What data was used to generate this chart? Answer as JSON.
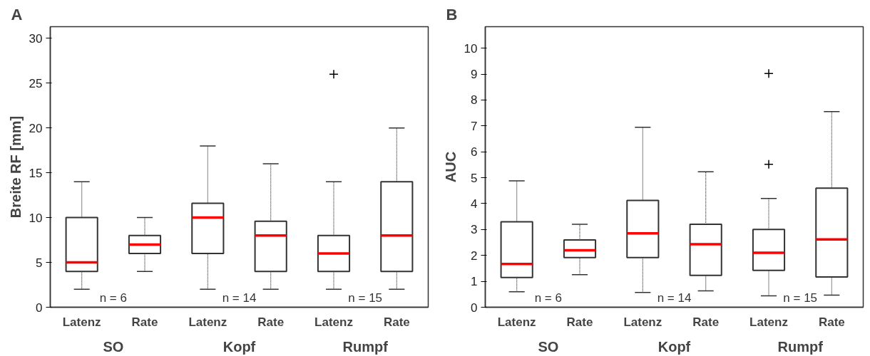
{
  "chart_data": [
    {
      "type": "box",
      "title": "A",
      "ylabel": "Breite RF [mm]",
      "categories": [
        "Latenz",
        "Rate",
        "Latenz",
        "Rate",
        "Latenz",
        "Rate"
      ],
      "series": [
        {
          "color": "#333333",
          "boxes": [
            {
              "low": 2,
              "q1": 4,
              "median": 5,
              "q3": 10,
              "high": 14
            },
            {
              "low": 4,
              "q1": 6,
              "median": 7,
              "q3": 8,
              "high": 10
            },
            {
              "low": 2,
              "q1": 6,
              "median": 10,
              "q3": 11.6,
              "high": 18
            },
            {
              "low": 2,
              "q1": 4,
              "median": 8,
              "q3": 9.6,
              "high": 16
            },
            {
              "low": 2,
              "q1": 4,
              "median": 6,
              "q3": 8,
              "high": 14,
              "outliers": [
                26
              ]
            },
            {
              "low": 2,
              "q1": 4,
              "median": 8,
              "q3": 14,
              "high": 20
            }
          ]
        }
      ],
      "ylim": [
        0,
        31.3
      ],
      "yticks": [
        0,
        5,
        10,
        15,
        20,
        25,
        30
      ],
      "grid": false,
      "marker": "cross",
      "annotations": [
        "SO",
        "Kopf",
        "Rumpf",
        "n = 6",
        "n = 14",
        "n = 15"
      ]
    },
    {
      "type": "box",
      "title": "B",
      "ylabel": "AUC",
      "categories": [
        "Latenz",
        "Rate",
        "Latenz",
        "Rate",
        "Latenz",
        "Rate"
      ],
      "series": [
        {
          "color": "#333333",
          "boxes": [
            {
              "low": 0.6,
              "q1": 1.15,
              "median": 1.67,
              "q3": 3.3,
              "high": 4.88
            },
            {
              "low": 1.26,
              "q1": 1.92,
              "median": 2.2,
              "q3": 2.6,
              "high": 3.2
            },
            {
              "low": 0.57,
              "q1": 1.92,
              "median": 2.85,
              "q3": 4.12,
              "high": 6.95
            },
            {
              "low": 0.63,
              "q1": 1.23,
              "median": 2.43,
              "q3": 3.2,
              "high": 5.23
            },
            {
              "low": 0.44,
              "q1": 1.42,
              "median": 2.1,
              "q3": 3.0,
              "high": 4.2,
              "outliers": [
                9.02,
                5.52
              ]
            },
            {
              "low": 0.47,
              "q1": 1.17,
              "median": 2.62,
              "q3": 4.6,
              "high": 7.55
            }
          ]
        }
      ],
      "ylim": [
        0,
        10.83
      ],
      "yticks": [
        0,
        1,
        2,
        3,
        4,
        5,
        6,
        7,
        8,
        9,
        10
      ],
      "grid": false,
      "marker": "cross",
      "annotations": [
        "SO",
        "Kopf",
        "Rumpf",
        "n = 6",
        "n = 14",
        "n = 15"
      ]
    }
  ]
}
